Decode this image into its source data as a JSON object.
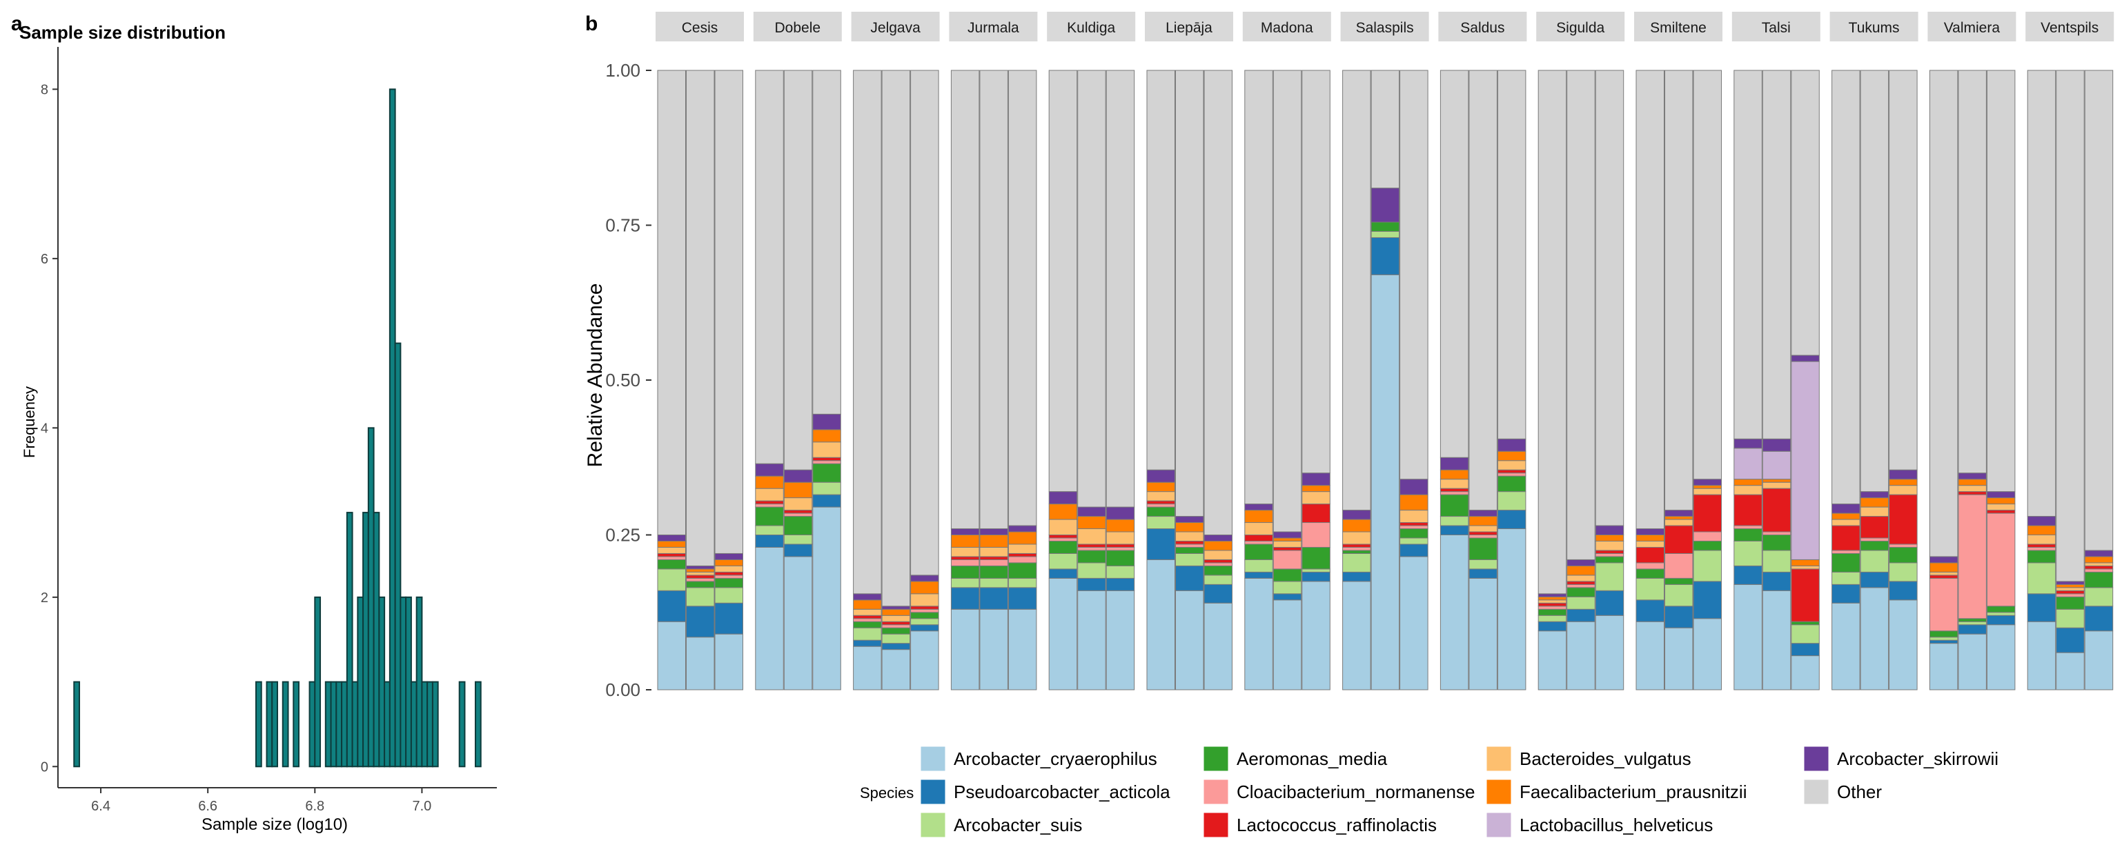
{
  "panel_a_label": "a",
  "panel_b_label": "b",
  "chart_data": [
    {
      "type": "bar",
      "panel": "a",
      "title": "Sample size distribution",
      "xlabel": "Sample size (log10)",
      "ylabel": "Frequency",
      "xlim": [
        6.32,
        7.14
      ],
      "ylim": [
        -0.25,
        8.5
      ],
      "xticks": [
        6.4,
        6.6,
        6.8,
        7.0
      ],
      "xtick_labels": [
        "6.4",
        "6.6",
        "6.8",
        "7.0"
      ],
      "yticks": [
        0,
        2,
        4,
        6,
        8
      ],
      "ytick_labels": [
        "0",
        "2",
        "4",
        "6",
        "8"
      ],
      "bin_width": 0.01,
      "bin_start": [
        6.35,
        6.69,
        6.71,
        6.72,
        6.74,
        6.76,
        6.79,
        6.8,
        6.82,
        6.83,
        6.84,
        6.85,
        6.86,
        6.87,
        6.88,
        6.89,
        6.9,
        6.91,
        6.92,
        6.93,
        6.94,
        6.95,
        6.96,
        6.97,
        6.98,
        6.99,
        7.0,
        7.01,
        7.02,
        7.07,
        7.1
      ],
      "counts": [
        1,
        1,
        1,
        1,
        1,
        1,
        1,
        2,
        1,
        1,
        1,
        1,
        3,
        1,
        2,
        3,
        4,
        3,
        2,
        1,
        8,
        5,
        2,
        2,
        1,
        2,
        1,
        1,
        1,
        1,
        1
      ],
      "fill": "#108080",
      "edge": "#0d3b3b"
    },
    {
      "type": "stacked-bar",
      "panel": "b",
      "title": "",
      "ylabel": "Relative Abundance",
      "ylim": [
        0,
        1
      ],
      "yticks": [
        0,
        0.25,
        0.5,
        0.75,
        1
      ],
      "ytick_labels": [
        "0.00",
        "0.25",
        "0.50",
        "0.75",
        "1.00"
      ],
      "legend_title": "Species",
      "legend_position": "bottom",
      "species": [
        {
          "name": "Arcobacter_cryaerophilus",
          "color": "#a6cee3"
        },
        {
          "name": "Pseudoarcobacter_acticola",
          "color": "#1f78b4"
        },
        {
          "name": "Arcobacter_suis",
          "color": "#b2df8a"
        },
        {
          "name": "Aeromonas_media",
          "color": "#33a02c"
        },
        {
          "name": "Cloacibacterium_normanense",
          "color": "#fb9a99"
        },
        {
          "name": "Lactococcus_raffinolactis",
          "color": "#e31a1c"
        },
        {
          "name": "Bacteroides_vulgatus",
          "color": "#fdbf6f"
        },
        {
          "name": "Faecalibacterium_prausnitzii",
          "color": "#ff7f00"
        },
        {
          "name": "Lactobacillus_helveticus",
          "color": "#cab2d6"
        },
        {
          "name": "Arcobacter_skirrowii",
          "color": "#6a3d9a"
        },
        {
          "name": "Other",
          "color": "#d3d3d3"
        }
      ],
      "facets": [
        {
          "label": "Cesis",
          "samples": [
            [
              0.11,
              0.05,
              0.035,
              0.015,
              0.005,
              0.005,
              0.01,
              0.01,
              0,
              0.01
            ],
            [
              0.085,
              0.05,
              0.03,
              0.01,
              0.005,
              0.005,
              0.005,
              0.005,
              0,
              0.005
            ],
            [
              0.09,
              0.05,
              0.025,
              0.015,
              0.005,
              0.005,
              0.01,
              0.01,
              0,
              0.01
            ]
          ]
        },
        {
          "label": "Dobele",
          "samples": [
            [
              0.23,
              0.02,
              0.015,
              0.03,
              0.005,
              0.005,
              0.02,
              0.02,
              0,
              0.02
            ],
            [
              0.215,
              0.02,
              0.015,
              0.03,
              0.005,
              0.005,
              0.02,
              0.025,
              0,
              0.02
            ],
            [
              0.295,
              0.02,
              0.02,
              0.03,
              0.005,
              0.005,
              0.025,
              0.02,
              0,
              0.025
            ]
          ]
        },
        {
          "label": "Jelgava",
          "samples": [
            [
              0.07,
              0.01,
              0.02,
              0.01,
              0.005,
              0.005,
              0.01,
              0.015,
              0,
              0.01
            ],
            [
              0.065,
              0.01,
              0.015,
              0.01,
              0.005,
              0.005,
              0.01,
              0.01,
              0,
              0.005
            ],
            [
              0.095,
              0.01,
              0.01,
              0.01,
              0.005,
              0.005,
              0.02,
              0.02,
              0,
              0.01
            ]
          ]
        },
        {
          "label": "Jurmala",
          "samples": [
            [
              0.13,
              0.035,
              0.015,
              0.02,
              0.01,
              0.005,
              0.015,
              0.02,
              0,
              0.01
            ],
            [
              0.13,
              0.035,
              0.015,
              0.02,
              0.01,
              0.005,
              0.015,
              0.02,
              0,
              0.01
            ],
            [
              0.13,
              0.035,
              0.015,
              0.025,
              0.01,
              0.005,
              0.015,
              0.02,
              0,
              0.01
            ]
          ]
        },
        {
          "label": "Kuldiga",
          "samples": [
            [
              0.18,
              0.015,
              0.025,
              0.02,
              0.005,
              0.005,
              0.025,
              0.025,
              0,
              0.02
            ],
            [
              0.16,
              0.02,
              0.025,
              0.02,
              0.005,
              0.005,
              0.025,
              0.02,
              0,
              0.015
            ],
            [
              0.16,
              0.02,
              0.02,
              0.025,
              0.005,
              0.005,
              0.02,
              0.02,
              0,
              0.02
            ]
          ]
        },
        {
          "label": "Liepāja",
          "samples": [
            [
              0.21,
              0.05,
              0.02,
              0.015,
              0.005,
              0.005,
              0.015,
              0.015,
              0,
              0.02
            ],
            [
              0.16,
              0.04,
              0.02,
              0.01,
              0.005,
              0.005,
              0.015,
              0.015,
              0,
              0.01
            ],
            [
              0.14,
              0.03,
              0.015,
              0.015,
              0.005,
              0.005,
              0.015,
              0.015,
              0,
              0.01
            ]
          ]
        },
        {
          "label": "Madona",
          "samples": [
            [
              0.18,
              0.01,
              0.02,
              0.025,
              0.005,
              0.01,
              0.02,
              0.02,
              0,
              0.01
            ],
            [
              0.145,
              0.01,
              0.02,
              0.02,
              0.03,
              0.005,
              0.01,
              0.005,
              0,
              0.01
            ],
            [
              0.175,
              0.015,
              0.005,
              0.035,
              0.04,
              0.03,
              0.02,
              0.01,
              0,
              0.02
            ]
          ]
        },
        {
          "label": "Salaspils",
          "samples": [
            [
              0.175,
              0.015,
              0.03,
              0.005,
              0.005,
              0.005,
              0.02,
              0.02,
              0,
              0.015
            ],
            [
              0.67,
              0.06,
              0.01,
              0.015,
              0,
              0,
              0,
              0,
              0,
              0.055
            ],
            [
              0.215,
              0.02,
              0.01,
              0.015,
              0.005,
              0.005,
              0.02,
              0.025,
              0,
              0.025
            ]
          ]
        },
        {
          "label": "Saldus",
          "samples": [
            [
              0.25,
              0.015,
              0.015,
              0.035,
              0.005,
              0.005,
              0.015,
              0.015,
              0,
              0.02
            ],
            [
              0.18,
              0.015,
              0.015,
              0.035,
              0.005,
              0.005,
              0.01,
              0.015,
              0,
              0.01
            ],
            [
              0.26,
              0.03,
              0.03,
              0.025,
              0.005,
              0.005,
              0.015,
              0.015,
              0,
              0.02
            ]
          ]
        },
        {
          "label": "Sigulda",
          "samples": [
            [
              0.095,
              0.015,
              0.01,
              0.01,
              0.005,
              0.005,
              0.005,
              0.005,
              0,
              0.005
            ],
            [
              0.11,
              0.02,
              0.02,
              0.015,
              0.005,
              0.005,
              0.01,
              0.015,
              0,
              0.01
            ],
            [
              0.12,
              0.04,
              0.045,
              0.01,
              0.005,
              0.005,
              0.015,
              0.01,
              0,
              0.015
            ]
          ]
        },
        {
          "label": "Smiltene",
          "samples": [
            [
              0.11,
              0.035,
              0.035,
              0.015,
              0.01,
              0.025,
              0.01,
              0.01,
              0,
              0.01
            ],
            [
              0.1,
              0.035,
              0.035,
              0.01,
              0.04,
              0.045,
              0.01,
              0.005,
              0,
              0.01
            ],
            [
              0.115,
              0.06,
              0.05,
              0.015,
              0.015,
              0.06,
              0.01,
              0.005,
              0,
              0.01
            ]
          ]
        },
        {
          "label": "Talsi",
          "samples": [
            [
              0.17,
              0.03,
              0.04,
              0.02,
              0.005,
              0.05,
              0.015,
              0.01,
              0.05,
              0.015
            ],
            [
              0.16,
              0.03,
              0.035,
              0.025,
              0.005,
              0.07,
              0.01,
              0.005,
              0.045,
              0.02
            ],
            [
              0.055,
              0.02,
              0.03,
              0.005,
              0,
              0.085,
              0.005,
              0.01,
              0.32,
              0.01
            ]
          ]
        },
        {
          "label": "Tukums",
          "samples": [
            [
              0.14,
              0.03,
              0.02,
              0.03,
              0.005,
              0.04,
              0.01,
              0.01,
              0,
              0.015
            ],
            [
              0.165,
              0.025,
              0.035,
              0.015,
              0.005,
              0.035,
              0.015,
              0.015,
              0,
              0.01
            ],
            [
              0.145,
              0.03,
              0.03,
              0.025,
              0.005,
              0.08,
              0.015,
              0.01,
              0,
              0.015
            ]
          ]
        },
        {
          "label": "Valmiera",
          "samples": [
            [
              0.075,
              0.005,
              0.005,
              0.01,
              0.085,
              0.005,
              0.005,
              0.015,
              0,
              0.01
            ],
            [
              0.09,
              0.015,
              0.005,
              0.005,
              0.2,
              0.005,
              0.01,
              0.01,
              0,
              0.01
            ],
            [
              0.105,
              0.015,
              0.005,
              0.01,
              0.15,
              0.005,
              0.01,
              0.01,
              0,
              0.01
            ]
          ]
        },
        {
          "label": "Ventspils",
          "samples": [
            [
              0.11,
              0.045,
              0.05,
              0.02,
              0.005,
              0.005,
              0.015,
              0.015,
              0,
              0.015
            ],
            [
              0.06,
              0.04,
              0.03,
              0.02,
              0.005,
              0.005,
              0.005,
              0.005,
              0,
              0.005
            ],
            [
              0.095,
              0.04,
              0.03,
              0.025,
              0.005,
              0.005,
              0.005,
              0.01,
              0,
              0.01
            ]
          ]
        }
      ]
    }
  ]
}
